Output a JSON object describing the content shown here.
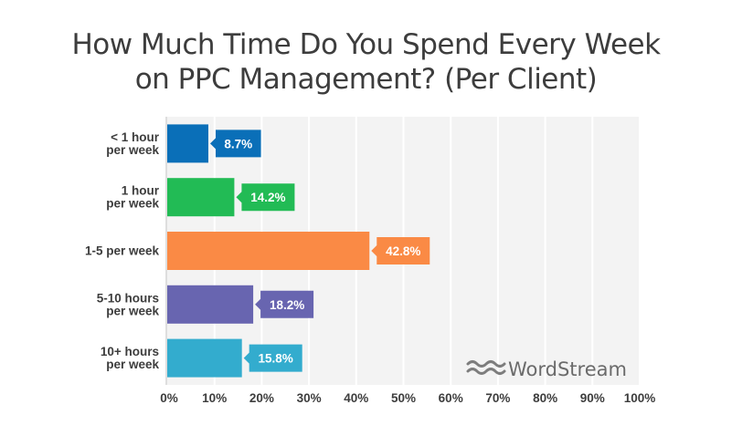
{
  "chart_data": {
    "type": "bar",
    "orientation": "horizontal",
    "title_lines": [
      "How Much Time Do You Spend Every Week",
      "on PPC Management? (Per Client)"
    ],
    "categories": [
      [
        "< 1 hour",
        "per week"
      ],
      [
        "1 hour",
        "per week"
      ],
      [
        "1-5 per week"
      ],
      [
        "5-10 hours",
        "per week"
      ],
      [
        "10+ hours",
        "per week"
      ]
    ],
    "values": [
      8.7,
      14.2,
      42.8,
      18.2,
      15.8
    ],
    "value_labels": [
      "8.7%",
      "14.2%",
      "42.8%",
      "18.2%",
      "15.8%"
    ],
    "colors": [
      "#0a6fb8",
      "#22bb55",
      "#fa8a45",
      "#6865b0",
      "#33acce"
    ],
    "xlim": [
      0,
      100
    ],
    "ticks": [
      0,
      10,
      20,
      30,
      40,
      50,
      60,
      70,
      80,
      90,
      100
    ],
    "tick_labels": [
      "0%",
      "10%",
      "20%",
      "30%",
      "40%",
      "50%",
      "60%",
      "70%",
      "80%",
      "90%",
      "100%"
    ],
    "grid": true,
    "plot_background": "#f3f3f3",
    "grid_color": "#ffffff"
  },
  "logo": {
    "text": "WordStream",
    "icon": "wave-icon",
    "color": "#6b6b6b"
  }
}
